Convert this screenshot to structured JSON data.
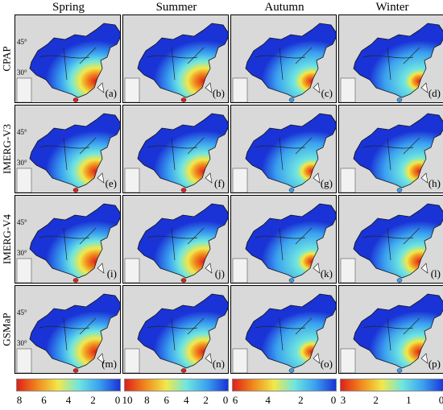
{
  "columns": [
    "Spring",
    "Summer",
    "Autumn",
    "Winter"
  ],
  "rows": [
    "CPAP",
    "IMERG-V3",
    "IMERG-V4",
    "GSMaP"
  ],
  "lat_labels": [
    "45°",
    "30°"
  ],
  "panel_letters": [
    [
      "(a)",
      "(b)",
      "(c)",
      "(d)"
    ],
    [
      "(e)",
      "(f)",
      "(g)",
      "(h)"
    ],
    [
      "(i)",
      "(j)",
      "(k)",
      "(l)"
    ],
    [
      "(m)",
      "(n)",
      "(o)",
      "(p)"
    ]
  ],
  "colorbars": [
    {
      "ticks": [
        "8",
        "6",
        "4",
        "2",
        "0"
      ]
    },
    {
      "ticks": [
        "10",
        "8",
        "6",
        "4",
        "2",
        "0"
      ]
    },
    {
      "ticks": [
        "6",
        "4",
        "2",
        "0"
      ]
    },
    {
      "ticks": [
        "3",
        "2",
        "1",
        "0"
      ]
    }
  ],
  "colors": {
    "background": "#d9d9d9",
    "low": "#1a33d6",
    "mid": "#3aa0f0",
    "high_cyan": "#6ee6e0",
    "yellow": "#f2e84a",
    "orange": "#f08a1c",
    "red": "#e0201a"
  }
}
